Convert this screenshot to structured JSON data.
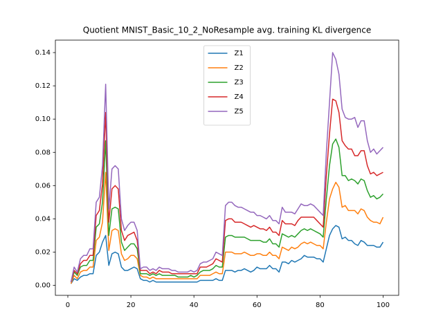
{
  "chart_data": {
    "type": "line",
    "title": "Quotient MNIST_Basic_10_2_NoResample avg. training KL divergence",
    "x": [
      1,
      2,
      3,
      4,
      5,
      6,
      7,
      8,
      9,
      10,
      11,
      12,
      13,
      14,
      15,
      16,
      17,
      18,
      19,
      20,
      21,
      22,
      23,
      24,
      25,
      26,
      27,
      28,
      29,
      30,
      31,
      32,
      33,
      34,
      35,
      36,
      37,
      38,
      39,
      40,
      41,
      42,
      43,
      44,
      45,
      46,
      47,
      48,
      49,
      50,
      51,
      52,
      53,
      54,
      55,
      56,
      57,
      58,
      59,
      60,
      61,
      62,
      63,
      64,
      65,
      66,
      67,
      68,
      69,
      70,
      71,
      72,
      73,
      74,
      75,
      76,
      77,
      78,
      79,
      80,
      81,
      82,
      83,
      84,
      85,
      86,
      87,
      88,
      89,
      90,
      91,
      92,
      93,
      94,
      95,
      96,
      97,
      98,
      99,
      100
    ],
    "series": [
      {
        "name": "Z1",
        "color": "#1f77b4",
        "values": [
          0.001,
          0.004,
          0.003,
          0.005,
          0.006,
          0.006,
          0.007,
          0.007,
          0.018,
          0.02,
          0.026,
          0.03,
          0.012,
          0.019,
          0.02,
          0.019,
          0.011,
          0.009,
          0.009,
          0.01,
          0.011,
          0.01,
          0.004,
          0.003,
          0.003,
          0.002,
          0.003,
          0.002,
          0.002,
          0.002,
          0.002,
          0.002,
          0.002,
          0.002,
          0.002,
          0.002,
          0.002,
          0.002,
          0.002,
          0.002,
          0.002,
          0.003,
          0.003,
          0.003,
          0.003,
          0.003,
          0.004,
          0.003,
          0.003,
          0.009,
          0.009,
          0.009,
          0.008,
          0.009,
          0.009,
          0.01,
          0.009,
          0.008,
          0.009,
          0.011,
          0.01,
          0.01,
          0.01,
          0.012,
          0.01,
          0.01,
          0.008,
          0.014,
          0.014,
          0.013,
          0.015,
          0.014,
          0.015,
          0.016,
          0.018,
          0.017,
          0.017,
          0.017,
          0.016,
          0.016,
          0.014,
          0.022,
          0.03,
          0.034,
          0.036,
          0.035,
          0.028,
          0.029,
          0.027,
          0.027,
          0.025,
          0.024,
          0.027,
          0.026,
          0.024,
          0.024,
          0.024,
          0.023,
          0.023,
          0.026
        ]
      },
      {
        "name": "Z2",
        "color": "#ff7f0e",
        "values": [
          0.001,
          0.006,
          0.004,
          0.008,
          0.009,
          0.009,
          0.011,
          0.011,
          0.027,
          0.029,
          0.038,
          0.068,
          0.021,
          0.033,
          0.034,
          0.033,
          0.019,
          0.015,
          0.016,
          0.018,
          0.018,
          0.016,
          0.006,
          0.005,
          0.005,
          0.004,
          0.005,
          0.004,
          0.004,
          0.004,
          0.004,
          0.004,
          0.004,
          0.004,
          0.004,
          0.004,
          0.004,
          0.004,
          0.004,
          0.004,
          0.004,
          0.006,
          0.006,
          0.006,
          0.006,
          0.007,
          0.008,
          0.007,
          0.007,
          0.02,
          0.02,
          0.02,
          0.019,
          0.019,
          0.019,
          0.02,
          0.019,
          0.018,
          0.018,
          0.019,
          0.019,
          0.018,
          0.018,
          0.02,
          0.018,
          0.018,
          0.016,
          0.023,
          0.022,
          0.021,
          0.023,
          0.022,
          0.023,
          0.025,
          0.026,
          0.025,
          0.026,
          0.025,
          0.024,
          0.024,
          0.022,
          0.038,
          0.052,
          0.058,
          0.062,
          0.059,
          0.047,
          0.048,
          0.045,
          0.045,
          0.045,
          0.043,
          0.046,
          0.045,
          0.041,
          0.039,
          0.038,
          0.038,
          0.037,
          0.041
        ]
      },
      {
        "name": "Z3",
        "color": "#2ca02c",
        "values": [
          0.002,
          0.008,
          0.006,
          0.011,
          0.012,
          0.012,
          0.015,
          0.015,
          0.035,
          0.037,
          0.05,
          0.087,
          0.03,
          0.046,
          0.047,
          0.046,
          0.026,
          0.021,
          0.023,
          0.025,
          0.025,
          0.022,
          0.007,
          0.007,
          0.007,
          0.006,
          0.007,
          0.006,
          0.007,
          0.006,
          0.006,
          0.006,
          0.006,
          0.006,
          0.005,
          0.005,
          0.005,
          0.005,
          0.006,
          0.005,
          0.006,
          0.008,
          0.009,
          0.009,
          0.009,
          0.01,
          0.012,
          0.011,
          0.011,
          0.029,
          0.03,
          0.03,
          0.029,
          0.029,
          0.029,
          0.029,
          0.028,
          0.027,
          0.027,
          0.027,
          0.027,
          0.026,
          0.026,
          0.028,
          0.025,
          0.025,
          0.023,
          0.031,
          0.03,
          0.029,
          0.03,
          0.029,
          0.031,
          0.033,
          0.034,
          0.033,
          0.034,
          0.033,
          0.032,
          0.031,
          0.029,
          0.052,
          0.072,
          0.085,
          0.088,
          0.083,
          0.066,
          0.066,
          0.063,
          0.064,
          0.063,
          0.061,
          0.064,
          0.063,
          0.057,
          0.053,
          0.054,
          0.052,
          0.053,
          0.055
        ]
      },
      {
        "name": "Z4",
        "color": "#d62728",
        "values": [
          0.002,
          0.009,
          0.007,
          0.013,
          0.015,
          0.015,
          0.018,
          0.018,
          0.042,
          0.045,
          0.061,
          0.104,
          0.038,
          0.058,
          0.06,
          0.058,
          0.033,
          0.027,
          0.03,
          0.031,
          0.032,
          0.027,
          0.009,
          0.009,
          0.009,
          0.007,
          0.008,
          0.007,
          0.009,
          0.008,
          0.008,
          0.008,
          0.007,
          0.007,
          0.007,
          0.007,
          0.007,
          0.007,
          0.007,
          0.007,
          0.007,
          0.011,
          0.011,
          0.011,
          0.012,
          0.013,
          0.016,
          0.015,
          0.014,
          0.039,
          0.04,
          0.04,
          0.038,
          0.038,
          0.038,
          0.037,
          0.036,
          0.035,
          0.036,
          0.035,
          0.034,
          0.034,
          0.033,
          0.035,
          0.032,
          0.032,
          0.03,
          0.039,
          0.037,
          0.037,
          0.037,
          0.036,
          0.039,
          0.041,
          0.041,
          0.041,
          0.041,
          0.041,
          0.039,
          0.037,
          0.035,
          0.066,
          0.091,
          0.112,
          0.111,
          0.104,
          0.087,
          0.084,
          0.082,
          0.082,
          0.078,
          0.078,
          0.081,
          0.081,
          0.072,
          0.067,
          0.068,
          0.066,
          0.067,
          0.068
        ]
      },
      {
        "name": "Z5",
        "color": "#9467bd",
        "values": [
          0.002,
          0.011,
          0.008,
          0.016,
          0.018,
          0.018,
          0.022,
          0.022,
          0.05,
          0.053,
          0.072,
          0.121,
          0.046,
          0.07,
          0.072,
          0.07,
          0.04,
          0.033,
          0.036,
          0.038,
          0.038,
          0.033,
          0.01,
          0.011,
          0.011,
          0.009,
          0.01,
          0.009,
          0.011,
          0.01,
          0.01,
          0.01,
          0.009,
          0.009,
          0.008,
          0.008,
          0.008,
          0.008,
          0.009,
          0.008,
          0.009,
          0.013,
          0.014,
          0.014,
          0.015,
          0.016,
          0.02,
          0.019,
          0.018,
          0.048,
          0.05,
          0.05,
          0.048,
          0.047,
          0.047,
          0.046,
          0.045,
          0.044,
          0.044,
          0.042,
          0.042,
          0.041,
          0.04,
          0.042,
          0.039,
          0.039,
          0.037,
          0.047,
          0.044,
          0.044,
          0.044,
          0.043,
          0.046,
          0.049,
          0.048,
          0.048,
          0.049,
          0.048,
          0.046,
          0.044,
          0.042,
          0.08,
          0.11,
          0.14,
          0.136,
          0.127,
          0.106,
          0.101,
          0.1,
          0.1,
          0.101,
          0.095,
          0.099,
          0.099,
          0.087,
          0.08,
          0.082,
          0.079,
          0.081,
          0.083
        ]
      }
    ],
    "xlim": [
      -3.95,
      104.95
    ],
    "xticks": [
      0,
      20,
      40,
      60,
      80,
      100
    ],
    "ylim": [
      -0.006,
      0.1475
    ],
    "yticks": [
      {
        "value": 0,
        "label": "0.00"
      },
      {
        "value": 0.02,
        "label": "0.02"
      },
      {
        "value": 0.04,
        "label": "0.04"
      },
      {
        "value": 0.06,
        "label": "0.06"
      },
      {
        "value": 0.08,
        "label": "0.08"
      },
      {
        "value": 0.1,
        "label": "0.10"
      },
      {
        "value": 0.12,
        "label": "0.12"
      },
      {
        "value": 0.14,
        "label": "0.14"
      }
    ],
    "legend": "upper center"
  }
}
